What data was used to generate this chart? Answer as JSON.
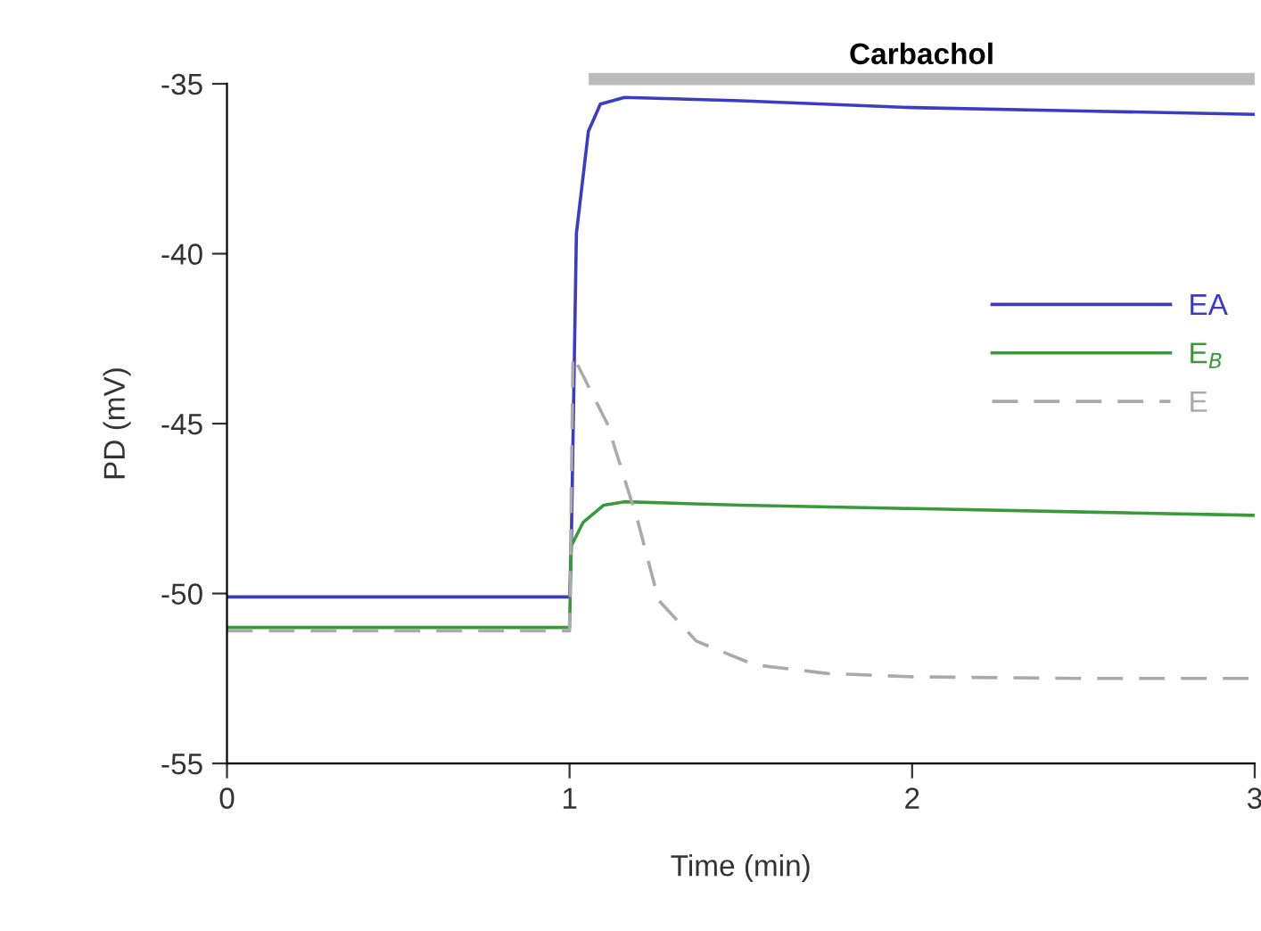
{
  "chart_data": {
    "type": "line",
    "xlabel": "Time (min)",
    "ylabel": "PD (mV)",
    "xlim": [
      0,
      3
    ],
    "xticks": [
      0,
      1,
      2,
      3
    ],
    "ylim": [
      -55,
      -35
    ],
    "yticks": [
      -55,
      -50,
      -45,
      -40,
      -35
    ],
    "grid": false,
    "legend": "right",
    "marker": "none",
    "annotations": [
      "Carbachol"
    ],
    "series": [
      {
        "name": "EA",
        "color": "#3b3bc8",
        "line_style": "solid",
        "x": [
          0,
          1.0,
          1.005,
          1.02,
          1.055,
          1.09,
          1.16,
          1.5,
          2,
          2.5,
          3
        ],
        "values": [
          -50.1,
          -50.1,
          -48.6,
          -39.4,
          -36.4,
          -35.6,
          -35.4,
          -35.5,
          -35.7,
          -35.8,
          -35.9
        ]
      },
      {
        "name": "E$_{B}$",
        "color": "#3a9a3a",
        "line_style": "solid",
        "x": [
          0,
          1.0,
          1.005,
          1.04,
          1.1,
          1.16,
          1.5,
          2,
          2.5,
          3
        ],
        "values": [
          -51.0,
          -51.0,
          -48.6,
          -47.9,
          -47.4,
          -47.3,
          -47.4,
          -47.5,
          -47.6,
          -47.7
        ]
      },
      {
        "name": "E",
        "color": "#aaaaaa",
        "line_style": "dashed",
        "x": [
          0,
          1.0,
          1.01,
          1.11,
          1.2,
          1.26,
          1.37,
          1.54,
          1.75,
          2,
          2.5,
          3
        ],
        "values": [
          -51.1,
          -51.1,
          -43.0,
          -45.0,
          -47.9,
          -50.2,
          -51.4,
          -52.1,
          -52.35,
          -52.45,
          -52.5,
          -52.5
        ]
      }
    ]
  }
}
